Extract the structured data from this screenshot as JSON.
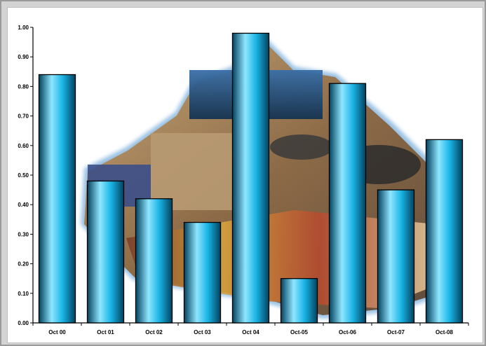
{
  "chart_data": {
    "type": "bar",
    "title": "",
    "xlabel": "",
    "ylabel": "",
    "categories": [
      "Oct 00",
      "Oct 01",
      "Oct 02",
      "Oct 03",
      "Oct 04",
      "Oct-05",
      "Oct-06",
      "Oct-07",
      "Oct-08"
    ],
    "values": [
      0.84,
      0.48,
      0.42,
      0.34,
      0.98,
      0.15,
      0.81,
      0.45,
      0.62
    ],
    "ylim": [
      0,
      1.0
    ],
    "yticks": [
      "0.00",
      "0.10",
      "0.20",
      "0.30",
      "0.40",
      "0.50",
      "0.60",
      "0.70",
      "0.80",
      "0.90",
      "1.00"
    ],
    "grid": false,
    "legend": "none",
    "colors": {
      "bar_light": "#8fe6ff",
      "bar_mid": "#19b4e6",
      "bar_dark": "#04425e",
      "bar_outline": "#000000"
    },
    "background_image": "office-collage-photo"
  }
}
